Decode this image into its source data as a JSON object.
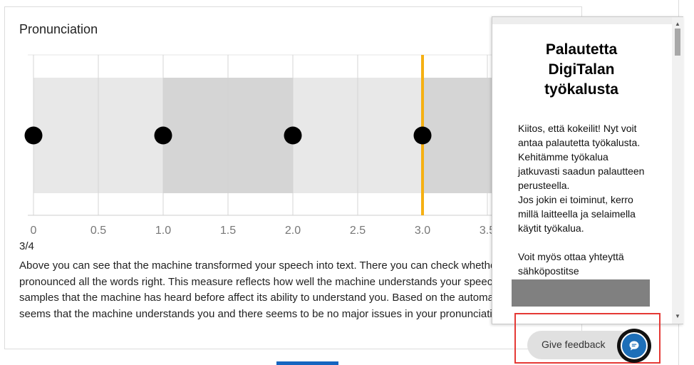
{
  "card": {
    "title": "Pronunciation",
    "score": "3/4",
    "description_lines": [
      "Above you can see that the machine transformed your speech into text. There you can check whether you",
      "pronounced all the words right. This measure reflects how well the machine understands your speech. The",
      "samples that the machine has heard before affect its ability to understand you. Based on the automatic assessment it",
      "seems that the machine understands you and there seems to be no major issues in your pronunciation."
    ]
  },
  "chart_data": {
    "type": "scatter",
    "x_ticks": [
      "0",
      "0.5",
      "1.0",
      "1.5",
      "2.0",
      "2.5",
      "3.0",
      "3.5"
    ],
    "xlim": [
      0,
      4
    ],
    "points": [
      0,
      1,
      2,
      3
    ],
    "marker_value": 3.0,
    "bands": [
      {
        "from": 0,
        "to": 1,
        "color": "#e8e8e8"
      },
      {
        "from": 1,
        "to": 2,
        "color": "#d5d5d5"
      },
      {
        "from": 2,
        "to": 3,
        "color": "#e8e8e8"
      },
      {
        "from": 3,
        "to": 4,
        "color": "#d5d5d5"
      }
    ],
    "marker_color": "#f5b013",
    "point_color": "#000000",
    "grid": true
  },
  "popup": {
    "heading_lines": [
      "Palautetta",
      "DigiTalan",
      "työkalusta"
    ],
    "body_lines": [
      "Kiitos, että kokeilit! Nyt voit",
      "antaa palautetta työkalusta.",
      "Kehitämme työkalua",
      "jatkuvasti saadun palautteen",
      "perusteella.",
      "Jos jokin ei toiminut, kerro",
      "millä laitteella ja selaimella",
      "käytit työkalua."
    ],
    "contact_lines": [
      "Voit myös ottaa yhteyttä",
      "sähköpostitse"
    ]
  },
  "feedback": {
    "label": "Give feedback",
    "icon": "chat-bubble-icon"
  }
}
